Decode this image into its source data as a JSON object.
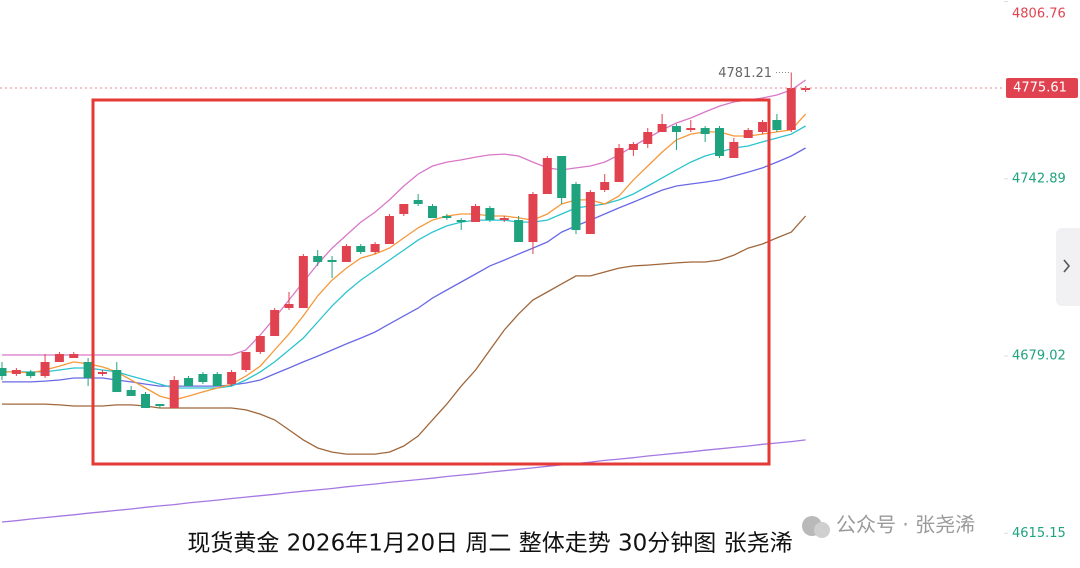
{
  "chart_data": {
    "type": "candlestick",
    "caption": "现货黄金 2026年1月20日 周二 整体走势 30分钟图 张尧浠",
    "watermark": "公众号 · 张尧浠",
    "ylim": [
      4602.64,
      4807.32
    ],
    "yticks": [
      4806.76,
      4742.89,
      4679.02,
      4615.15
    ],
    "grid": false,
    "last_price": 4775.61,
    "high_label": 4781.21,
    "up_color": "#e0434f",
    "down_color": "#1fa37f",
    "candles": {
      "open": [
        4674.71,
        4672.55,
        4673.27,
        4671.82,
        4676.87,
        4678.31,
        4676.87,
        4672.55,
        4673.99,
        4666.78,
        4665.34,
        4661.73,
        4660.29,
        4671.1,
        4672.55,
        4672.55,
        4668.94,
        4673.99,
        4680.47,
        4686.24,
        4696.33,
        4696.33,
        4715.07,
        4713.63,
        4712.91,
        4718.67,
        4716.51,
        4719.39,
        4730.2,
        4735.25,
        4733.09,
        4729.48,
        4728.04,
        4727.32,
        4732.37,
        4728.04,
        4728.04,
        4720.11,
        4737.41,
        4751.1,
        4741.01,
        4723.0,
        4738.85,
        4741.73,
        4753.27,
        4755.43,
        4759.75,
        4761.91,
        4760.47,
        4761.19,
        4761.19,
        4750.38,
        4757.59,
        4759.75,
        4764.08,
        4760.47,
        4774.89
      ],
      "high": [
        4676.87,
        4674.71,
        4673.99,
        4679.75,
        4680.47,
        4680.47,
        4678.31,
        4673.99,
        4676.87,
        4668.22,
        4666.06,
        4661.73,
        4671.82,
        4671.82,
        4673.27,
        4673.27,
        4673.99,
        4680.47,
        4686.24,
        4696.33,
        4702.09,
        4715.79,
        4717.23,
        4715.07,
        4719.39,
        4719.39,
        4720.11,
        4730.2,
        4733.81,
        4737.41,
        4733.81,
        4730.2,
        4728.76,
        4733.81,
        4733.09,
        4729.48,
        4729.48,
        4738.13,
        4751.1,
        4751.1,
        4741.73,
        4738.85,
        4744.62,
        4755.43,
        4756.15,
        4761.19,
        4766.24,
        4762.64,
        4764.08,
        4761.91,
        4761.91,
        4757.59,
        4761.19,
        4764.08,
        4766.24,
        4781.21,
        4776.33
      ],
      "low": [
        4670.38,
        4671.82,
        4671.1,
        4671.1,
        4676.87,
        4678.31,
        4668.22,
        4671.82,
        4666.06,
        4664.62,
        4660.29,
        4660.29,
        4660.29,
        4668.22,
        4668.94,
        4668.22,
        4668.22,
        4673.27,
        4679.75,
        4686.24,
        4695.61,
        4696.33,
        4711.46,
        4707.14,
        4712.91,
        4715.79,
        4715.79,
        4719.39,
        4729.48,
        4733.09,
        4728.76,
        4728.04,
        4724.44,
        4727.32,
        4727.32,
        4727.32,
        4720.11,
        4715.79,
        4737.41,
        4733.81,
        4723.0,
        4723.0,
        4738.13,
        4741.73,
        4751.1,
        4753.99,
        4759.75,
        4753.27,
        4759.75,
        4756.15,
        4750.38,
        4750.38,
        4757.59,
        4759.03,
        4759.75,
        4759.75,
        4774.17
      ],
      "close": [
        4671.82,
        4673.99,
        4671.82,
        4676.87,
        4679.75,
        4679.75,
        4671.1,
        4673.27,
        4666.06,
        4664.62,
        4660.29,
        4661.01,
        4670.38,
        4668.22,
        4669.66,
        4668.22,
        4673.27,
        4680.47,
        4686.24,
        4695.61,
        4697.77,
        4715.07,
        4712.91,
        4712.91,
        4718.67,
        4716.51,
        4719.39,
        4729.48,
        4733.81,
        4733.81,
        4728.76,
        4728.76,
        4727.32,
        4733.09,
        4728.04,
        4728.76,
        4720.11,
        4737.41,
        4750.38,
        4735.97,
        4724.44,
        4738.13,
        4741.73,
        4753.99,
        4755.43,
        4759.75,
        4762.64,
        4759.75,
        4761.19,
        4759.03,
        4751.1,
        4756.15,
        4760.47,
        4763.36,
        4760.47,
        4775.61,
        4775.61
      ]
    },
    "lines": [
      {
        "color": "#a678e2",
        "values": [
          4619.2,
          4619.7,
          4620.3,
          4620.8,
          4621.3,
          4621.8,
          4622.4,
          4622.9,
          4623.4,
          4623.9,
          4624.5,
          4625.0,
          4625.5,
          4626.1,
          4626.6,
          4627.1,
          4627.7,
          4628.2,
          4628.7,
          4629.2,
          4629.8,
          4630.3,
          4630.8,
          4631.3,
          4631.9,
          4632.4,
          4632.9,
          4633.5,
          4634.0,
          4634.5,
          4635.0,
          4635.6,
          4636.1,
          4636.6,
          4637.2,
          4637.7,
          4638.2,
          4638.7,
          4639.3,
          4639.8,
          4640.3,
          4640.8,
          4641.4,
          4641.9,
          4642.4,
          4643.0,
          4643.5,
          4644.0,
          4644.5,
          4645.1,
          4645.6,
          4646.1,
          4646.6,
          4647.2,
          4647.7,
          4648.2,
          4648.8
        ]
      },
      {
        "color": "#a0673b",
        "values": [
          4661.7,
          4661.7,
          4661.7,
          4661.7,
          4661.4,
          4661.0,
          4661.0,
          4661.0,
          4661.4,
          4661.4,
          4661.0,
          4660.3,
          4660.3,
          4660.3,
          4660.3,
          4660.3,
          4660.3,
          4659.6,
          4658.1,
          4656.0,
          4652.4,
          4648.8,
          4645.9,
          4644.4,
          4643.7,
          4643.7,
          4643.7,
          4644.4,
          4646.6,
          4650.2,
          4656.0,
          4661.7,
          4668.2,
          4674.0,
          4681.2,
          4688.4,
          4694.2,
          4699.2,
          4702.1,
          4705.0,
          4707.9,
          4707.9,
          4709.3,
          4710.7,
          4711.5,
          4711.8,
          4712.2,
          4712.6,
          4712.9,
          4712.9,
          4713.6,
          4715.4,
          4717.9,
          4719.4,
          4721.6,
          4723.7,
          4729.5
        ]
      },
      {
        "color": "#6a6ae6",
        "values": [
          4669.7,
          4669.7,
          4669.7,
          4670.0,
          4670.4,
          4671.1,
          4671.1,
          4671.1,
          4670.4,
          4669.7,
          4668.9,
          4668.2,
          4668.2,
          4668.2,
          4668.2,
          4668.2,
          4668.6,
          4669.3,
          4670.4,
          4672.6,
          4674.7,
          4676.9,
          4679.0,
          4681.2,
          4683.4,
          4685.5,
          4687.7,
          4690.6,
          4693.5,
          4696.3,
          4699.9,
          4702.8,
          4705.7,
          4708.6,
          4711.5,
          4713.6,
          4715.8,
          4717.9,
          4720.1,
          4723.7,
          4725.9,
          4728.0,
          4730.2,
          4732.4,
          4734.5,
          4736.7,
          4738.8,
          4740.3,
          4741.0,
          4741.7,
          4742.5,
          4743.9,
          4745.3,
          4746.8,
          4748.9,
          4751.1,
          4754.0
        ]
      },
      {
        "color": "#2cc4cf",
        "values": [
          4673.3,
          4673.3,
          4673.3,
          4673.3,
          4674.0,
          4674.7,
          4674.7,
          4674.0,
          4673.3,
          4671.8,
          4670.4,
          4668.9,
          4667.5,
          4667.5,
          4667.5,
          4667.5,
          4668.2,
          4670.4,
          4673.3,
          4676.9,
          4681.2,
          4685.5,
          4691.3,
          4697.1,
          4702.1,
          4706.4,
          4710.0,
          4713.6,
          4717.2,
          4720.8,
          4723.7,
          4725.9,
          4727.3,
          4728.0,
          4728.0,
          4728.0,
          4727.3,
          4727.3,
          4728.0,
          4730.2,
          4732.4,
          4733.1,
          4733.8,
          4735.3,
          4737.4,
          4740.3,
          4743.2,
          4746.1,
          4748.9,
          4751.1,
          4752.5,
          4754.0,
          4754.7,
          4756.2,
          4757.6,
          4759.0,
          4761.9
        ]
      },
      {
        "color": "#f5993a",
        "values": [
          4673.3,
          4673.3,
          4672.9,
          4674.0,
          4675.4,
          4676.9,
          4676.2,
          4675.1,
          4673.3,
          4670.4,
          4667.5,
          4664.6,
          4663.2,
          4664.6,
          4666.1,
          4667.5,
          4668.9,
          4671.8,
          4675.4,
          4681.2,
          4687.0,
          4693.5,
          4700.7,
          4706.4,
          4710.7,
          4714.3,
          4715.8,
          4717.9,
          4721.6,
          4725.2,
          4728.0,
          4729.5,
          4730.2,
          4730.2,
          4729.5,
          4729.5,
          4728.8,
          4728.0,
          4730.2,
          4733.8,
          4735.3,
          4735.3,
          4733.8,
          4736.7,
          4742.5,
          4747.5,
          4752.5,
          4756.9,
          4759.0,
          4759.8,
          4759.8,
          4758.3,
          4758.3,
          4759.0,
          4759.8,
          4760.5,
          4766.2
        ]
      },
      {
        "color": "#d978c8",
        "values": [
          4679.4,
          4679.4,
          4679.4,
          4679.4,
          4679.4,
          4679.4,
          4679.4,
          4679.4,
          4679.4,
          4679.4,
          4679.4,
          4679.4,
          4679.4,
          4679.4,
          4679.4,
          4679.4,
          4679.4,
          4681.2,
          4686.6,
          4692.7,
          4699.2,
          4705.7,
          4712.2,
          4717.9,
          4722.6,
          4727.3,
          4730.9,
          4735.3,
          4740.3,
          4744.6,
          4747.5,
          4748.9,
          4749.7,
          4750.7,
          4751.5,
          4751.8,
          4751.1,
          4748.9,
          4746.8,
          4746.1,
          4746.8,
          4747.5,
          4748.9,
          4751.5,
          4754.7,
          4757.6,
          4760.5,
          4763.0,
          4764.8,
          4767.0,
          4769.1,
          4770.6,
          4771.3,
          4772.0,
          4773.1,
          4774.9,
          4778.5
        ]
      }
    ]
  }
}
